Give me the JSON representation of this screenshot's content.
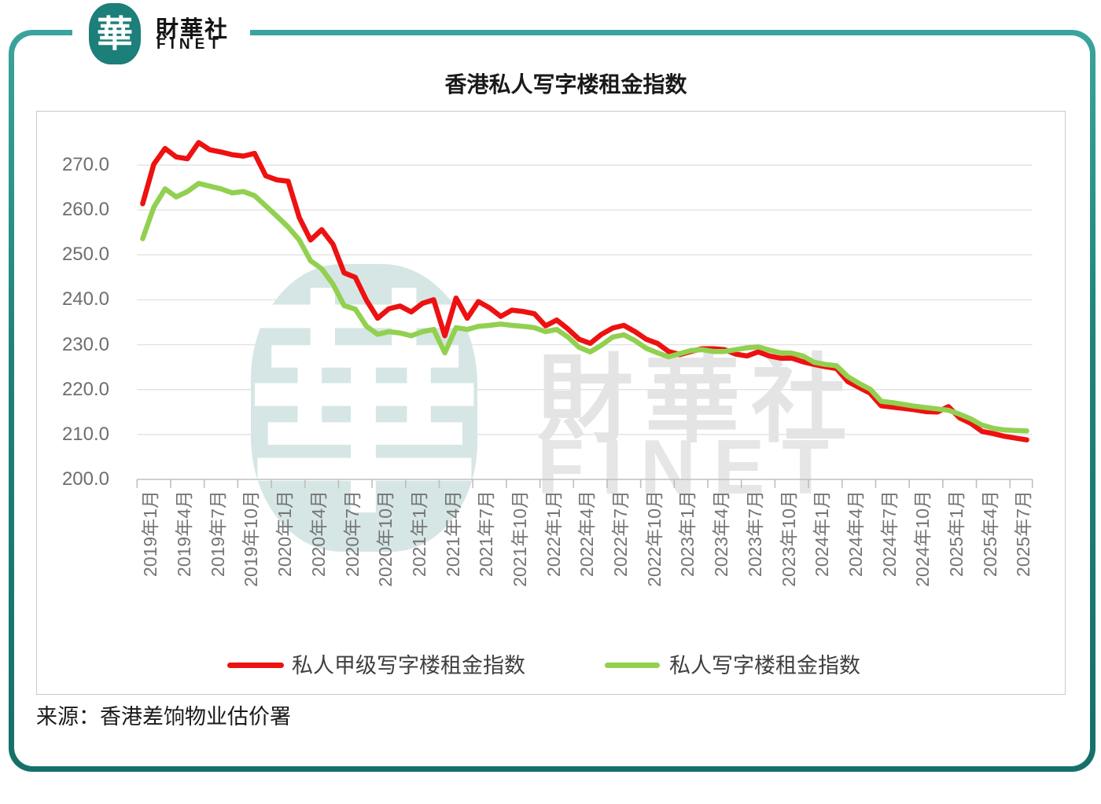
{
  "brand": {
    "seal_char": "華",
    "name_cn": "財華社",
    "name_en": "FINET"
  },
  "header": {
    "title": "香港私人写字楼租金指数"
  },
  "source": {
    "text": "来源：香港差饷物业估价署"
  },
  "watermark": {
    "seal_char": "華",
    "text_cn": "財華社",
    "text_en": "FINET"
  },
  "colors": {
    "frame_teal": "#1d817b",
    "seal_teal": "#1c7f79",
    "series_grade_a_red": "#ee1111",
    "series_all_green": "#92d050",
    "gridline": "#e2e2e2",
    "axis_line": "#bfbfbf",
    "axis_text": "#6e6e6e",
    "watermark_seal": "#d5e6e5",
    "watermark_text": "#e4e4e4"
  },
  "chart_data": {
    "type": "line",
    "title": "香港私人写字楼租金指数",
    "xlabel": "",
    "ylabel": "",
    "ylim": [
      200,
      277
    ],
    "grid": "horizontal",
    "legend_position": "bottom-inside",
    "y_tick_labels": [
      "270.0",
      "260.0",
      "250.0",
      "240.0",
      "230.0",
      "220.0",
      "210.0",
      "200.0"
    ],
    "y_tick_values": [
      270,
      260,
      250,
      240,
      230,
      220,
      210,
      200
    ],
    "x_tick_labels": [
      "2019年1月",
      "2019年4月",
      "2019年7月",
      "2019年10月",
      "2020年1月",
      "2020年4月",
      "2020年7月",
      "2020年10月",
      "2021年1月",
      "2021年4月",
      "2021年7月",
      "2021年10月",
      "2022年1月",
      "2022年4月",
      "2022年7月",
      "2022年10月",
      "2023年1月",
      "2023年4月",
      "2023年7月",
      "2023年10月",
      "2024年1月",
      "2024年4月",
      "2024年7月",
      "2024年10月",
      "2025年1月",
      "2025年4月",
      "2025年7月"
    ],
    "x": [
      "2019年1月",
      "2019年2月",
      "2019年3月",
      "2019年4月",
      "2019年5月",
      "2019年6月",
      "2019年7月",
      "2019年8月",
      "2019年9月",
      "2019年10月",
      "2019年11月",
      "2019年12月",
      "2020年1月",
      "2020年2月",
      "2020年3月",
      "2020年4月",
      "2020年5月",
      "2020年6月",
      "2020年7月",
      "2020年8月",
      "2020年9月",
      "2020年10月",
      "2020年11月",
      "2020年12月",
      "2021年1月",
      "2021年2月",
      "2021年3月",
      "2021年4月",
      "2021年5月",
      "2021年6月",
      "2021年7月",
      "2021年8月",
      "2021年9月",
      "2021年10月",
      "2021年11月",
      "2021年12月",
      "2022年1月",
      "2022年2月",
      "2022年3月",
      "2022年4月",
      "2022年5月",
      "2022年6月",
      "2022年7月",
      "2022年8月",
      "2022年9月",
      "2022年10月",
      "2022年11月",
      "2022年12月",
      "2023年1月",
      "2023年2月",
      "2023年3月",
      "2023年4月",
      "2023年5月",
      "2023年6月",
      "2023年7月",
      "2023年8月",
      "2023年9月",
      "2023年10月",
      "2023年11月",
      "2023年12月",
      "2024年1月",
      "2024年2月",
      "2024年3月",
      "2024年4月",
      "2024年5月",
      "2024年6月",
      "2024年7月",
      "2024年8月",
      "2024年9月",
      "2024年10月",
      "2024年11月",
      "2024年12月",
      "2025年1月",
      "2025年2月",
      "2025年3月",
      "2025年4月",
      "2025年5月",
      "2025年6月",
      "2025年7月",
      "2025年8月"
    ],
    "series": [
      {
        "name": "私人甲级写字楼租金指数",
        "color": "#ee1111",
        "values": [
          261.4,
          270.2,
          273.7,
          271.8,
          271.4,
          275.0,
          273.4,
          272.9,
          272.3,
          272.0,
          272.6,
          267.6,
          266.7,
          266.4,
          258.3,
          253.3,
          255.6,
          252.4,
          246.0,
          245.0,
          239.9,
          235.9,
          238.0,
          238.6,
          237.3,
          239.2,
          240.0,
          232.0,
          240.4,
          235.9,
          239.6,
          238.2,
          236.3,
          237.7,
          237.4,
          236.9,
          234.2,
          235.5,
          233.5,
          231.2,
          230.3,
          232.3,
          233.7,
          234.3,
          232.9,
          231.2,
          230.3,
          228.5,
          227.8,
          228.5,
          229.1,
          229.1,
          228.9,
          227.9,
          227.5,
          228.4,
          227.5,
          227.0,
          227.0,
          226.2,
          225.6,
          225.1,
          224.7,
          221.8,
          220.5,
          219.2,
          216.4,
          216.1,
          215.8,
          215.5,
          215.1,
          215.0,
          216.2,
          213.7,
          212.5,
          210.7,
          210.2,
          209.6,
          209.2,
          208.8
        ]
      },
      {
        "name": "私人写字楼租金指数",
        "color": "#92d050",
        "values": [
          253.6,
          260.6,
          264.7,
          262.9,
          264.1,
          265.9,
          265.3,
          264.7,
          263.8,
          264.1,
          263.2,
          260.9,
          258.6,
          256.2,
          253.3,
          248.7,
          246.9,
          243.5,
          238.7,
          237.9,
          234.1,
          232.3,
          232.9,
          232.6,
          232.0,
          232.9,
          233.4,
          228.2,
          233.8,
          233.4,
          234.1,
          234.3,
          234.6,
          234.3,
          234.1,
          233.8,
          232.9,
          233.4,
          231.7,
          229.4,
          228.4,
          229.9,
          231.7,
          232.2,
          230.9,
          229.2,
          228.2,
          227.3,
          228.0,
          228.7,
          228.9,
          228.5,
          228.5,
          228.9,
          229.3,
          229.5,
          228.8,
          228.2,
          228.1,
          227.5,
          226.1,
          225.6,
          225.3,
          222.9,
          221.4,
          220.1,
          217.4,
          217.1,
          216.7,
          216.3,
          216.0,
          215.7,
          215.4,
          214.5,
          213.5,
          212.1,
          211.4,
          211.0,
          210.9,
          210.8
        ]
      }
    ]
  }
}
